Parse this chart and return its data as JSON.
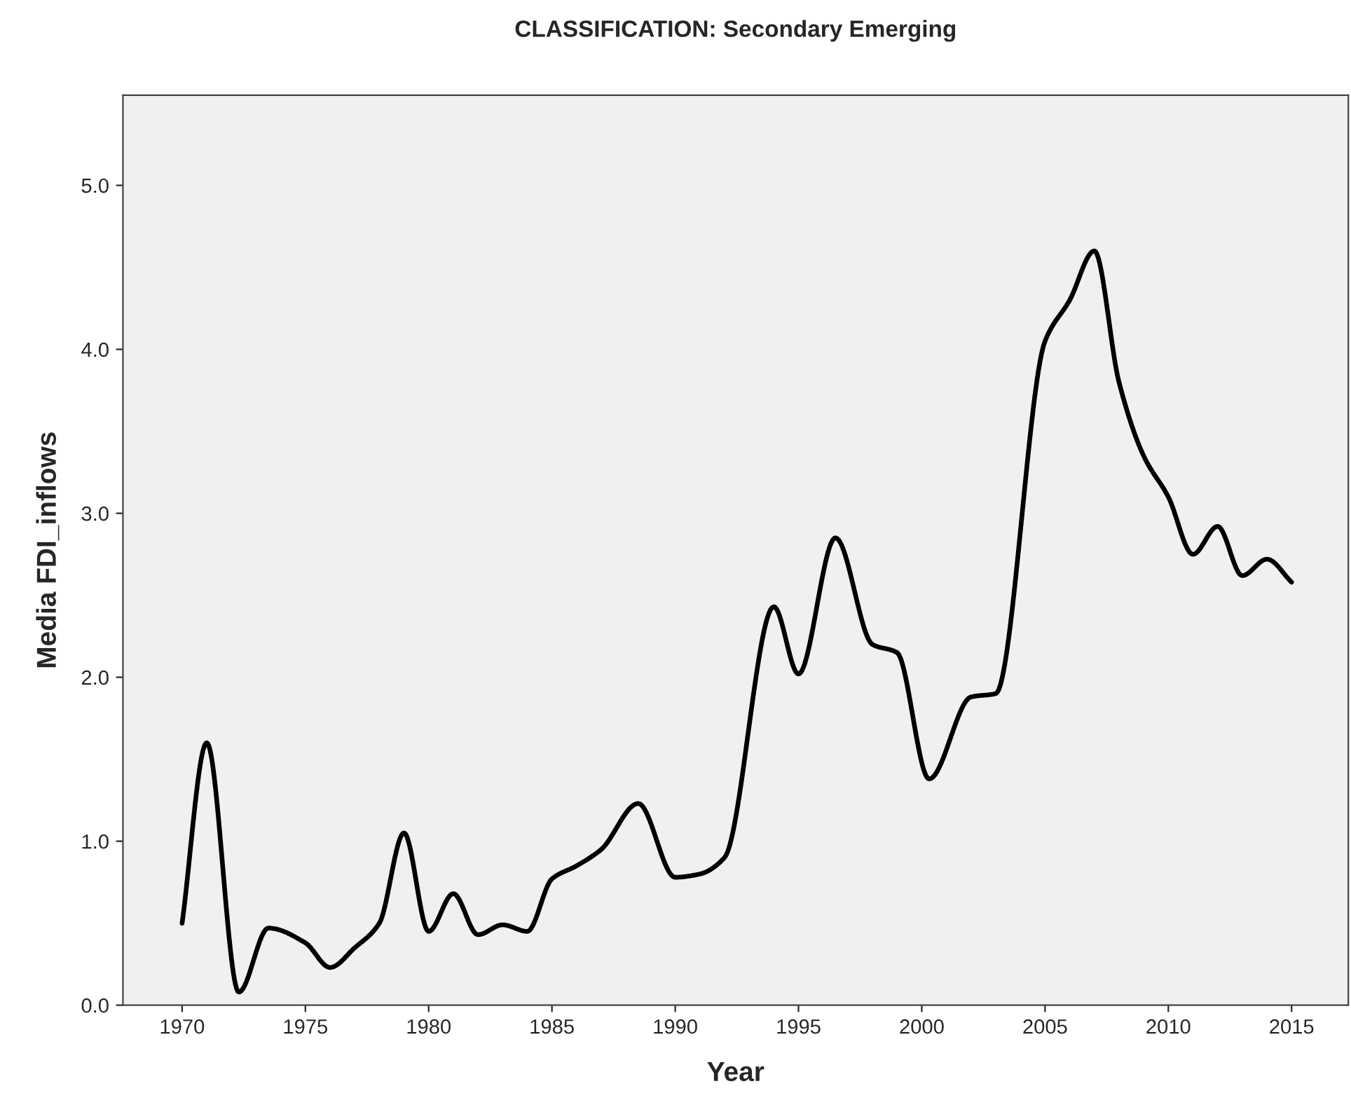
{
  "chart_data": {
    "type": "line",
    "title": "CLASSIFICATION: Secondary Emerging",
    "xlabel": "Year",
    "ylabel": "Media FDI_inflows",
    "x": [
      1970,
      1971,
      1972.3,
      1973.5,
      1975,
      1976,
      1977,
      1978,
      1979,
      1980,
      1981,
      1982,
      1983,
      1984,
      1985,
      1986,
      1987,
      1988.5,
      1990,
      1991,
      1992,
      1994,
      1995,
      1996.5,
      1998,
      1999,
      2000.3,
      2002,
      2003,
      2005,
      2006,
      2007,
      2008,
      2009,
      2010,
      2011,
      2012,
      2013,
      2014,
      2015
    ],
    "series": [
      {
        "color": "#000000",
        "values": [
          0.5,
          1.6,
          0.08,
          0.47,
          0.38,
          0.23,
          0.35,
          0.5,
          1.05,
          0.45,
          0.68,
          0.43,
          0.49,
          0.45,
          0.77,
          0.85,
          0.95,
          1.23,
          0.78,
          0.8,
          0.9,
          2.43,
          2.02,
          2.85,
          2.2,
          2.15,
          1.38,
          1.88,
          1.9,
          4.05,
          4.3,
          4.6,
          3.8,
          3.35,
          3.1,
          2.75,
          2.92,
          2.62,
          2.72,
          2.58
        ]
      }
    ],
    "xlim": [
      1967.6,
      2017.3
    ],
    "xticks": [
      1970,
      1975,
      1980,
      1985,
      1990,
      1995,
      2000,
      2005,
      2010,
      2015
    ],
    "ylim": [
      0,
      5.55
    ],
    "yticks": [
      {
        "value": 0,
        "label": "0.0"
      },
      {
        "value": 1,
        "label": "1.0"
      },
      {
        "value": 2,
        "label": "2.0"
      },
      {
        "value": 3,
        "label": "3.0"
      },
      {
        "value": 4,
        "label": "4.0"
      },
      {
        "value": 5,
        "label": "5.0"
      }
    ],
    "grid": false,
    "marker": "none",
    "line_style": "solid"
  }
}
